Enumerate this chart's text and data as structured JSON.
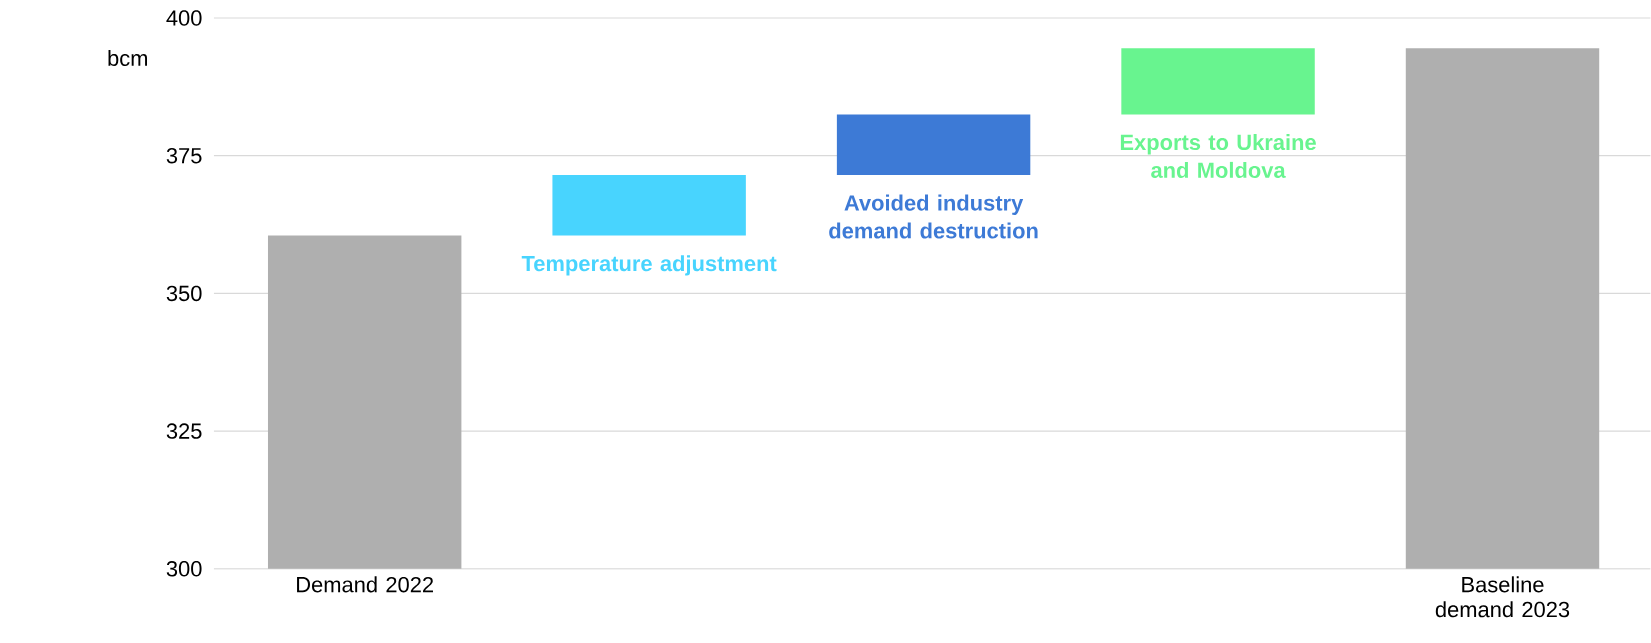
{
  "chart_data": {
    "type": "bar",
    "ylabel": "bcm",
    "categories": [
      "Demand 2022",
      "Temperature adjustment",
      "Avoided industry demand destruction",
      "Exports to Ukraine and Moldova",
      "Baseline demand 2023"
    ],
    "values": [
      360.5,
      11,
      11,
      12,
      394.5
    ],
    "base": [
      null,
      360.5,
      371.5,
      382.5,
      null
    ],
    "colors": [
      "#afafaf",
      "#48d4fe",
      "#3d7ad6",
      "#68f48f",
      "#afafaf"
    ],
    "ylim": [
      300,
      400
    ],
    "yticks": [
      300,
      325,
      350,
      375,
      400
    ],
    "grid": "y"
  }
}
